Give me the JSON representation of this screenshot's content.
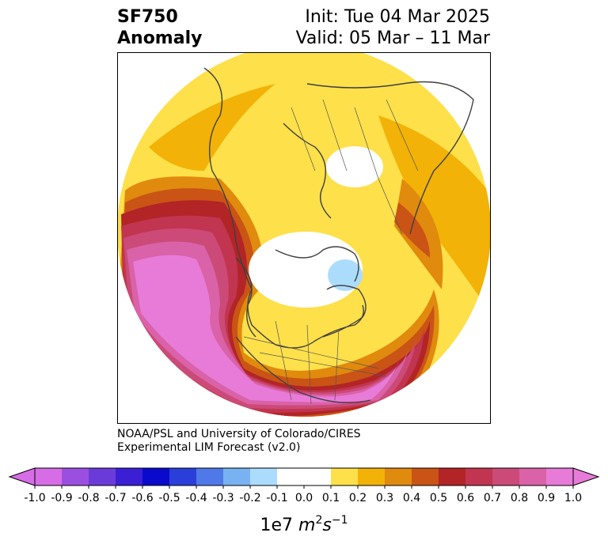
{
  "header": {
    "variable": "SF750",
    "product": "Anomaly",
    "init": "Init: Tue 04 Mar 2025",
    "valid": "Valid: 05 Mar – 11 Mar"
  },
  "credit": {
    "line1": "NOAA/PSL and University of Colorado/CIRES",
    "line2": "Experimental LIM Forecast (v2.0)"
  },
  "colorbar": {
    "ticks": [
      "-1.0",
      "-0.9",
      "-0.8",
      "-0.7",
      "-0.6",
      "-0.5",
      "-0.4",
      "-0.3",
      "-0.2",
      "-0.1",
      "0.0",
      "0.1",
      "0.2",
      "0.3",
      "0.4",
      "0.5",
      "0.6",
      "0.7",
      "0.8",
      "0.9",
      "1.0"
    ],
    "colors": [
      "#d76de6",
      "#9b4fe0",
      "#6b3bd9",
      "#3a1fd4",
      "#0a0acc",
      "#2a3fd9",
      "#4f78e8",
      "#78b2f2",
      "#acdcfb",
      "#ffffff",
      "#ffffff",
      "#fee04a",
      "#f2b207",
      "#e08a0e",
      "#c95415",
      "#b22426",
      "#c13550",
      "#cc4a78",
      "#d962a8",
      "#e87bd8"
    ],
    "label_base": "1e7 ",
    "label_unit": "m",
    "label_exp1": "2",
    "label_s": "s",
    "label_exp2": "−1"
  }
}
